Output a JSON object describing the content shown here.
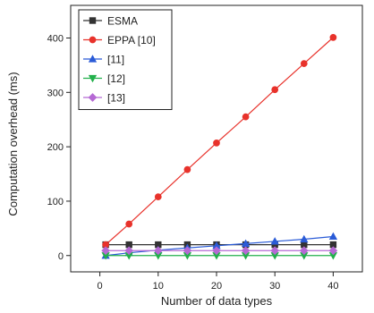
{
  "chart_data": {
    "type": "line",
    "xlabel": "Number of data types",
    "ylabel": "Computation overhead (ms)",
    "xlim": [
      -5,
      45
    ],
    "ylim": [
      -30,
      460
    ],
    "xticks": [
      0,
      10,
      20,
      30,
      40
    ],
    "yticks": [
      0,
      100,
      200,
      300,
      400
    ],
    "grid": false,
    "legend_position": "top-left",
    "x": [
      1,
      5,
      10,
      15,
      20,
      25,
      30,
      35,
      40
    ],
    "series": [
      {
        "name": "ESMA",
        "color": "#333333",
        "marker": "square",
        "values": [
          20,
          20,
          20,
          20,
          20,
          20,
          20,
          20,
          20
        ]
      },
      {
        "name": "EPPA [10]",
        "color": "#e8322b",
        "marker": "circle",
        "values": [
          20,
          58,
          108,
          158,
          207,
          255,
          305,
          353,
          401
        ]
      },
      {
        "name": "[11]",
        "color": "#2a5bd7",
        "marker": "triangle-up",
        "values": [
          0,
          5,
          10,
          14,
          18,
          22,
          26,
          30,
          35
        ]
      },
      {
        "name": "[12]",
        "color": "#22b04b",
        "marker": "triangle-down",
        "values": [
          0,
          0,
          0,
          0,
          0,
          0,
          0,
          0,
          0
        ]
      },
      {
        "name": "[13]",
        "color": "#b569d4",
        "marker": "diamond",
        "values": [
          9,
          9,
          9,
          9,
          9,
          9,
          9,
          9,
          9
        ]
      }
    ]
  }
}
